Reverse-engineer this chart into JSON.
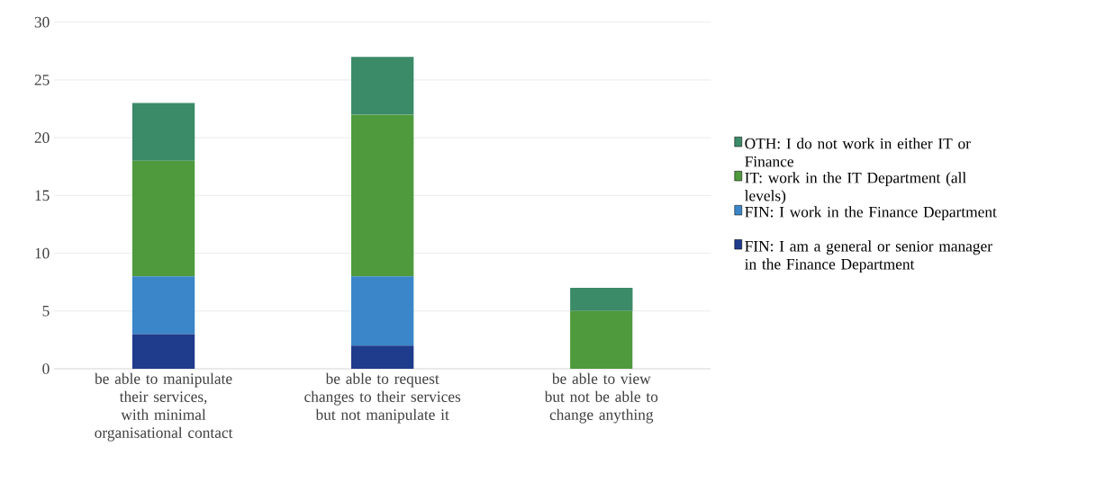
{
  "chart_data": {
    "type": "bar",
    "stacked": true,
    "grid": "y",
    "legend": "right",
    "categories": [
      "be able to manipulate their services, with minimal organisational contact",
      "be able to request changes to their services but not manipulate it",
      "be able to view but not be able to change anything"
    ],
    "series": [
      {
        "name": "FIN: I am a general or senior manager in the Finance Department",
        "color": "#1f3b8c",
        "values": [
          3,
          2,
          0
        ]
      },
      {
        "name": "FIN: I work in the Finance Department",
        "color": "#3a86c8",
        "values": [
          5,
          6,
          0
        ]
      },
      {
        "name": "IT: work in the IT Department (all levels)",
        "color": "#4e9a3c",
        "values": [
          10,
          14,
          5
        ]
      },
      {
        "name": "OTH: I do not work in either IT or Finance",
        "color": "#3b8a68",
        "values": [
          5,
          5,
          2
        ]
      }
    ],
    "ylim": [
      0,
      30
    ],
    "yticks": [
      0,
      5,
      10,
      15,
      20,
      25,
      30
    ]
  }
}
